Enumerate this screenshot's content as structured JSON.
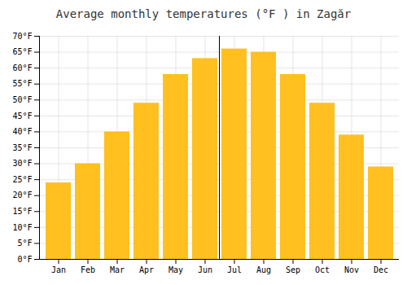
{
  "chart_data": {
    "type": "bar",
    "title": "Average monthly temperatures (°F ) in Zagăr",
    "categories": [
      "Jan",
      "Feb",
      "Mar",
      "Apr",
      "May",
      "Jun",
      "Jul",
      "Aug",
      "Sep",
      "Oct",
      "Nov",
      "Dec"
    ],
    "values": [
      24,
      30,
      40,
      49,
      58,
      63,
      66,
      65,
      58,
      49,
      39,
      29
    ],
    "color": "#FFC020",
    "ylim": [
      0,
      70
    ],
    "yticks": [
      {
        "value": 0,
        "label": "0°F"
      },
      {
        "value": 5,
        "label": "5°F"
      },
      {
        "value": 10,
        "label": "10°F"
      },
      {
        "value": 15,
        "label": "15°F"
      },
      {
        "value": 20,
        "label": "20°F"
      },
      {
        "value": 25,
        "label": "25°F"
      },
      {
        "value": 30,
        "label": "30°F"
      },
      {
        "value": 35,
        "label": "35°F"
      },
      {
        "value": 40,
        "label": "40°F"
      },
      {
        "value": 45,
        "label": "45°F"
      },
      {
        "value": 50,
        "label": "50°F"
      },
      {
        "value": 55,
        "label": "55°F"
      },
      {
        "value": 60,
        "label": "60°F"
      },
      {
        "value": 65,
        "label": "65°F"
      },
      {
        "value": 70,
        "label": "70°F"
      }
    ],
    "grid": true
  }
}
